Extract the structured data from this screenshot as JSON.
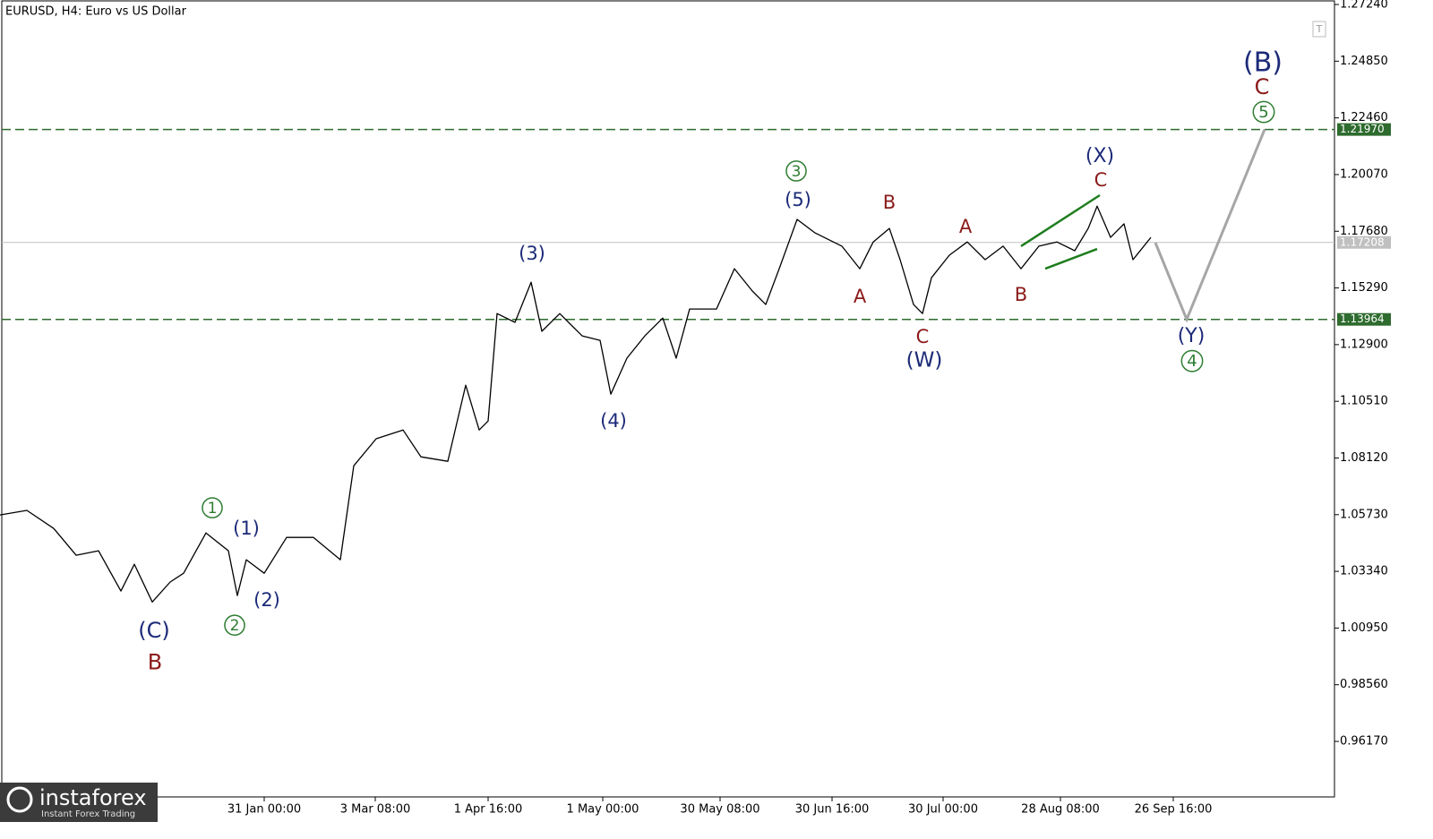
{
  "chart_data": {
    "type": "line",
    "title": "EURUSD, H4:  Euro vs US Dollar",
    "toolbar_icon": "T",
    "watermark": {
      "name": "instaforex",
      "tagline": "Instant Forex Trading"
    },
    "color": "#000000",
    "xlim": [
      0,
      1490
    ],
    "ylim": [
      0.9383,
      1.2743
    ],
    "xticks": [
      {
        "value": 295,
        "label": "31 Jan 00:00"
      },
      {
        "value": 419,
        "label": "3 Mar 08:00"
      },
      {
        "value": 545,
        "label": "1 Apr 16:00"
      },
      {
        "value": 673,
        "label": "1 May 00:00"
      },
      {
        "value": 804,
        "label": "30 May 08:00"
      },
      {
        "value": 929,
        "label": "30 Jun 16:00"
      },
      {
        "value": 1053,
        "label": "30 Jul 00:00"
      },
      {
        "value": 1184,
        "label": "28 Aug 08:00"
      },
      {
        "value": 1310,
        "label": "26 Sep 16:00"
      }
    ],
    "yticks": [
      {
        "value": 1.2724,
        "label": "1.27240"
      },
      {
        "value": 1.2485,
        "label": "1.24850"
      },
      {
        "value": 1.2246,
        "label": "1.22460"
      },
      {
        "value": 1.2007,
        "label": "1.20070"
      },
      {
        "value": 1.1768,
        "label": "1.17680"
      },
      {
        "value": 1.1529,
        "label": "1.15290"
      },
      {
        "value": 1.129,
        "label": "1.12900"
      },
      {
        "value": 1.1051,
        "label": "1.10510"
      },
      {
        "value": 1.0812,
        "label": "1.08120"
      },
      {
        "value": 1.0573,
        "label": "1.05730"
      },
      {
        "value": 1.0334,
        "label": "1.03340"
      },
      {
        "value": 1.0095,
        "label": "1.00950"
      },
      {
        "value": 0.9856,
        "label": "0.98560"
      },
      {
        "value": 0.9617,
        "label": "0.96170"
      }
    ],
    "x": [
      0,
      30,
      60,
      85,
      110,
      135,
      150,
      170,
      190,
      205,
      230,
      255,
      265,
      275,
      295,
      320,
      350,
      380,
      395,
      420,
      450,
      470,
      500,
      520,
      535,
      545,
      555,
      575,
      593,
      605,
      625,
      650,
      670,
      682,
      700,
      720,
      740,
      755,
      770,
      800,
      820,
      840,
      855,
      870,
      890,
      910,
      940,
      960,
      975,
      993,
      1005,
      1020,
      1030,
      1040,
      1060,
      1080,
      1100,
      1120,
      1140,
      1160,
      1180,
      1200,
      1215,
      1225,
      1240,
      1255,
      1265,
      1285
    ],
    "values": [
      1.0572,
      1.0591,
      1.0515,
      1.0402,
      1.0421,
      1.0251,
      1.0364,
      1.0205,
      1.0289,
      1.0326,
      1.0496,
      1.0421,
      1.0232,
      1.0383,
      1.0326,
      1.0477,
      1.0477,
      1.0383,
      1.0779,
      1.0893,
      1.093,
      1.0817,
      1.0798,
      1.1119,
      1.093,
      1.0968,
      1.1421,
      1.1384,
      1.1553,
      1.1346,
      1.1421,
      1.1327,
      1.1308,
      1.1081,
      1.1233,
      1.1327,
      1.1402,
      1.1233,
      1.144,
      1.144,
      1.161,
      1.1516,
      1.1459,
      1.161,
      1.1818,
      1.1761,
      1.1705,
      1.161,
      1.1723,
      1.178,
      1.1648,
      1.1459,
      1.1421,
      1.1572,
      1.1667,
      1.1723,
      1.1648,
      1.1705,
      1.161,
      1.1705,
      1.1723,
      1.1686,
      1.178,
      1.1874,
      1.1742,
      1.1799,
      1.1648,
      1.1742
    ],
    "projection": {
      "color": "#a6a6a6",
      "x": [
        1290,
        1325,
        1412
      ],
      "values": [
        1.172,
        1.13964,
        1.2197
      ]
    },
    "trendlines": [
      {
        "color": "#1e7d1e",
        "x": [
          1140,
          1228
        ],
        "values": [
          1.1705,
          1.192
        ]
      },
      {
        "color": "#1e7d1e",
        "x": [
          1167,
          1225
        ],
        "values": [
          1.161,
          1.1693
        ]
      }
    ],
    "levels": [
      {
        "value": 1.2197,
        "label": "1.21970",
        "color": "#2e6b2e",
        "dashed": true
      },
      {
        "value": 1.13964,
        "label": "1.13964",
        "color": "#2e6b2e",
        "dashed": true
      },
      {
        "value": 1.17208,
        "label": "1.17208",
        "color": "#c0c0c0",
        "dashed": false
      }
    ],
    "annotations": [
      {
        "text": "(C)",
        "x": 172,
        "y": 1.0085,
        "color": "#1c2a78",
        "size": 24
      },
      {
        "text": "B",
        "x": 173,
        "y": 0.9952,
        "color": "#8b1a1a",
        "size": 24
      },
      {
        "text": "1",
        "x": 237,
        "y": 1.0602,
        "color": "#2e7d32",
        "size": 17,
        "circled": true
      },
      {
        "text": "(1)",
        "x": 275,
        "y": 1.0515,
        "color": "#1c2a78",
        "size": 21
      },
      {
        "text": "2",
        "x": 262,
        "y": 1.0107,
        "color": "#2e7d32",
        "size": 17,
        "circled": true
      },
      {
        "text": "(2)",
        "x": 298,
        "y": 1.0213,
        "color": "#1c2a78",
        "size": 21
      },
      {
        "text": "(3)",
        "x": 594,
        "y": 1.1674,
        "color": "#1c2a78",
        "size": 21
      },
      {
        "text": "(4)",
        "x": 685,
        "y": 1.0968,
        "color": "#1c2a78",
        "size": 21
      },
      {
        "text": "3",
        "x": 889,
        "y": 1.2022,
        "color": "#2e7d32",
        "size": 17,
        "circled": true
      },
      {
        "text": "(5)",
        "x": 891,
        "y": 1.1901,
        "color": "#1c2a78",
        "size": 21
      },
      {
        "text": "A",
        "x": 960,
        "y": 1.1493,
        "color": "#8b1a1a",
        "size": 21
      },
      {
        "text": "B",
        "x": 993,
        "y": 1.189,
        "color": "#8b1a1a",
        "size": 21
      },
      {
        "text": "C",
        "x": 1030,
        "y": 1.1323,
        "color": "#8b1a1a",
        "size": 21
      },
      {
        "text": "(W)",
        "x": 1032,
        "y": 1.1225,
        "color": "#1c2a78",
        "size": 23
      },
      {
        "text": "A",
        "x": 1078,
        "y": 1.1788,
        "color": "#8b1a1a",
        "size": 21
      },
      {
        "text": "B",
        "x": 1140,
        "y": 1.1501,
        "color": "#8b1a1a",
        "size": 21
      },
      {
        "text": "(X)",
        "x": 1228,
        "y": 1.2086,
        "color": "#1c2a78",
        "size": 22
      },
      {
        "text": "C",
        "x": 1229,
        "y": 1.1984,
        "color": "#8b1a1a",
        "size": 21
      },
      {
        "text": "(B)",
        "x": 1410,
        "y": 1.2479,
        "color": "#1c2a78",
        "size": 30
      },
      {
        "text": "C",
        "x": 1409,
        "y": 1.2377,
        "color": "#8b1a1a",
        "size": 24
      },
      {
        "text": "5",
        "x": 1411,
        "y": 1.2271,
        "color": "#2e7d32",
        "size": 18,
        "circled": true
      },
      {
        "text": "(Y)",
        "x": 1330,
        "y": 1.1327,
        "color": "#1c2a78",
        "size": 22
      },
      {
        "text": "4",
        "x": 1331,
        "y": 1.1221,
        "color": "#2e7d32",
        "size": 18,
        "circled": true
      }
    ]
  }
}
